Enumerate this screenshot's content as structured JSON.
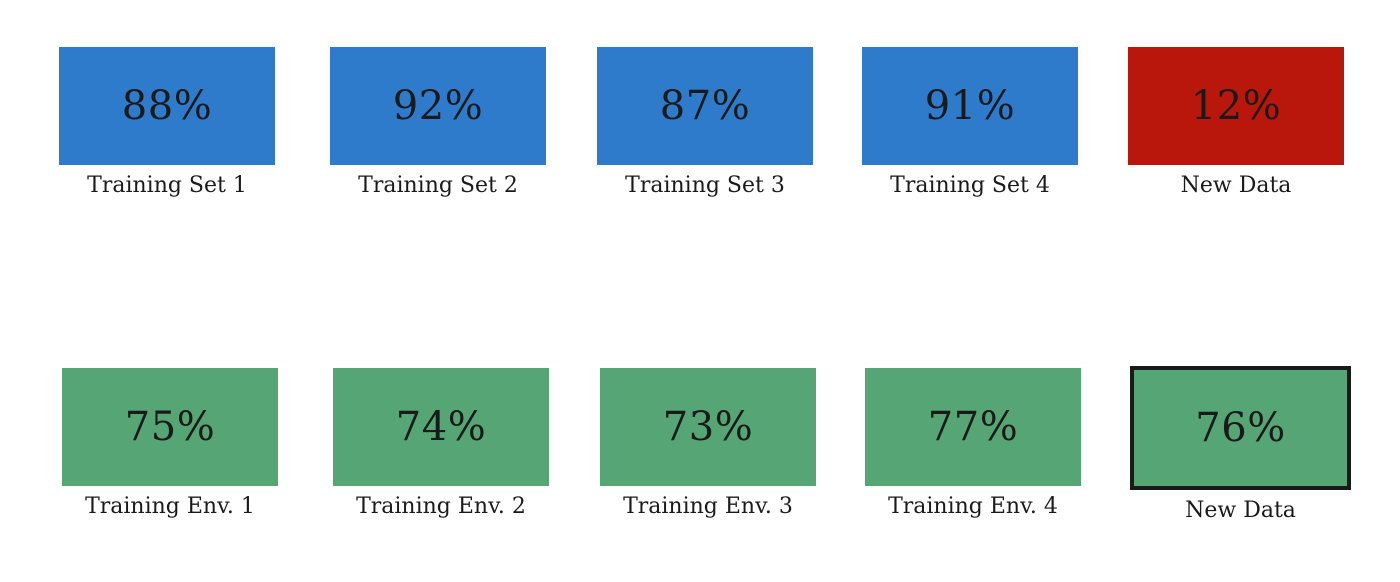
{
  "colors": {
    "training_blue": "#2e7bcc",
    "failure_red": "#b9170c",
    "robust_green": "#56a574",
    "border_dark": "#1a1a1a"
  },
  "rows": [
    {
      "tiles": [
        {
          "value": "88%",
          "label": "Training Set 1",
          "color": "#2e7bcc"
        },
        {
          "value": "92%",
          "label": "Training Set 2",
          "color": "#2e7bcc"
        },
        {
          "value": "87%",
          "label": "Training Set 3",
          "color": "#2e7bcc"
        },
        {
          "value": "91%",
          "label": "Training Set 4",
          "color": "#2e7bcc"
        },
        {
          "value": "12%",
          "label": "New Data",
          "color": "#b9170c"
        }
      ]
    },
    {
      "tiles": [
        {
          "value": "75%",
          "label": "Training Env. 1",
          "color": "#56a574"
        },
        {
          "value": "74%",
          "label": "Training Env. 2",
          "color": "#56a574"
        },
        {
          "value": "73%",
          "label": "Training Env. 3",
          "color": "#56a574"
        },
        {
          "value": "77%",
          "label": "Training Env. 4",
          "color": "#56a574"
        },
        {
          "value": "76%",
          "label": "New Data",
          "color": "#56a574",
          "bordered": true
        }
      ]
    }
  ]
}
